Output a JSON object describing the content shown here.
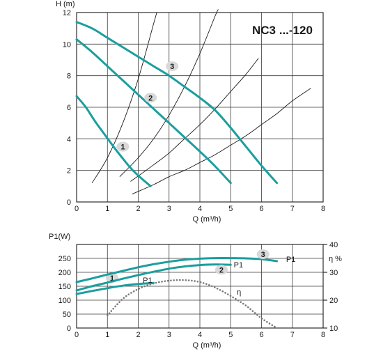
{
  "chart_data": [
    {
      "type": "line",
      "title": "NC3 ...-120",
      "ylabel": "H (m)",
      "xlabel": "Q (m³/h)",
      "xlim": [
        0,
        8
      ],
      "ylim": [
        0,
        12
      ],
      "x_ticks": [
        "0",
        "1",
        "2",
        "3",
        "4",
        "5",
        "6",
        "7",
        "8"
      ],
      "y_ticks": [
        "0",
        "2",
        "4",
        "6",
        "8",
        "10",
        "12"
      ],
      "grid": true,
      "pump_color": "#1b9e9e",
      "series": [
        {
          "label": "1",
          "label_at": [
            1.5,
            3.5
          ],
          "points": [
            [
              0,
              6.7
            ],
            [
              0.3,
              6.0
            ],
            [
              0.6,
              5.1
            ],
            [
              0.9,
              4.3
            ],
            [
              1.2,
              3.5
            ],
            [
              1.5,
              2.75
            ],
            [
              1.8,
              2.05
            ],
            [
              2.1,
              1.5
            ],
            [
              2.4,
              1.0
            ]
          ]
        },
        {
          "label": "2",
          "label_at": [
            2.4,
            6.6
          ],
          "points": [
            [
              0,
              10.3
            ],
            [
              0.5,
              9.5
            ],
            [
              1.0,
              8.6
            ],
            [
              1.5,
              7.7
            ],
            [
              2.0,
              6.8
            ],
            [
              2.5,
              5.9
            ],
            [
              3.0,
              5.0
            ],
            [
              3.5,
              4.1
            ],
            [
              4.0,
              3.2
            ],
            [
              4.5,
              2.25
            ],
            [
              5.0,
              1.2
            ]
          ]
        },
        {
          "label": "3",
          "label_at": [
            3.1,
            8.6
          ],
          "points": [
            [
              0,
              11.4
            ],
            [
              0.5,
              11.0
            ],
            [
              1.0,
              10.4
            ],
            [
              1.5,
              9.8
            ],
            [
              2.0,
              9.2
            ],
            [
              2.5,
              8.6
            ],
            [
              3.0,
              8.0
            ],
            [
              3.5,
              7.3
            ],
            [
              4.0,
              6.6
            ],
            [
              4.5,
              5.8
            ],
            [
              5.0,
              4.7
            ],
            [
              5.5,
              3.5
            ],
            [
              6.0,
              2.3
            ],
            [
              6.5,
              1.2
            ]
          ]
        }
      ],
      "system_curves": [
        [
          [
            0.5,
            1.2
          ],
          [
            1.0,
            2.8
          ],
          [
            1.5,
            5.0
          ],
          [
            2.0,
            7.8
          ],
          [
            2.5,
            11.3
          ],
          [
            2.6,
            12.0
          ]
        ],
        [
          [
            1.4,
            1.6
          ],
          [
            2.0,
            2.8
          ],
          [
            2.5,
            4.0
          ],
          [
            3.0,
            5.5
          ],
          [
            3.5,
            7.3
          ],
          [
            4.0,
            9.4
          ],
          [
            4.5,
            11.8
          ],
          [
            4.6,
            12.2
          ]
        ],
        [
          [
            1.75,
            1.3
          ],
          [
            2.5,
            2.35
          ],
          [
            3.0,
            3.1
          ],
          [
            3.5,
            4.0
          ],
          [
            4.0,
            4.9
          ],
          [
            4.5,
            5.9
          ],
          [
            5.0,
            7.0
          ],
          [
            5.5,
            8.1
          ],
          [
            5.9,
            9.1
          ]
        ],
        [
          [
            1.8,
            0.5
          ],
          [
            2.5,
            1.1
          ],
          [
            3.0,
            1.6
          ],
          [
            3.5,
            2.0
          ],
          [
            4.0,
            2.5
          ],
          [
            4.5,
            3.0
          ],
          [
            5.0,
            3.6
          ],
          [
            5.5,
            4.2
          ],
          [
            6.0,
            4.9
          ],
          [
            6.5,
            5.6
          ],
          [
            7.0,
            6.4
          ],
          [
            7.6,
            7.2
          ]
        ]
      ]
    },
    {
      "type": "line",
      "ylabel": "P1(W)",
      "y2label": "η %",
      "xlabel": "Q (m³/h)",
      "xlim": [
        0,
        8
      ],
      "ylim": [
        0,
        300
      ],
      "y2lim": [
        10,
        40
      ],
      "x_ticks": [
        "0",
        "1",
        "2",
        "3",
        "4",
        "5",
        "6",
        "7",
        "8"
      ],
      "y_ticks": [
        "0",
        "50",
        "100",
        "150",
        "200",
        "250"
      ],
      "y2_ticks": [
        "10",
        "20",
        "30",
        "40"
      ],
      "grid": true,
      "series": [
        {
          "label": "1",
          "side_label": "P1",
          "label_at": [
            1.15,
            180
          ],
          "side_label_at": [
            2.15,
            162
          ],
          "points": [
            [
              0,
              122
            ],
            [
              0.5,
              133
            ],
            [
              1.0,
              143
            ],
            [
              1.5,
              152
            ],
            [
              2.0,
              158
            ],
            [
              2.5,
              162
            ]
          ]
        },
        {
          "label": "2",
          "side_label": "P1",
          "label_at": [
            4.7,
            209
          ],
          "side_label_at": [
            5.1,
            218
          ],
          "points": [
            [
              0,
              135
            ],
            [
              0.5,
              150
            ],
            [
              1.0,
              163
            ],
            [
              1.5,
              177
            ],
            [
              2.0,
              190
            ],
            [
              2.5,
              202
            ],
            [
              3.0,
              213
            ],
            [
              3.5,
              221
            ],
            [
              4.0,
              226
            ],
            [
              4.5,
              228
            ],
            [
              5.0,
              227
            ]
          ]
        },
        {
          "label": "3",
          "side_label": "P1",
          "label_at": [
            6.05,
            265
          ],
          "side_label_at": [
            6.8,
            237
          ],
          "points": [
            [
              0,
              165
            ],
            [
              0.5,
              178
            ],
            [
              1.0,
              192
            ],
            [
              1.5,
              205
            ],
            [
              2.0,
              218
            ],
            [
              2.5,
              229
            ],
            [
              3.0,
              238
            ],
            [
              3.5,
              245
            ],
            [
              4.0,
              249
            ],
            [
              4.5,
              251
            ],
            [
              5.0,
              251
            ],
            [
              5.5,
              250
            ],
            [
              6.0,
              247
            ],
            [
              6.5,
              240
            ]
          ]
        }
      ],
      "efficiency": {
        "label": "η",
        "label_at": [
          5.2,
          120
        ],
        "points": [
          [
            1.0,
            14.5
          ],
          [
            1.5,
            20.5
          ],
          [
            2.0,
            24.0
          ],
          [
            2.5,
            26.0
          ],
          [
            3.0,
            27.0
          ],
          [
            3.5,
            27.2
          ],
          [
            4.0,
            26.5
          ],
          [
            4.5,
            24.5
          ],
          [
            5.0,
            21.5
          ],
          [
            5.5,
            18.0
          ],
          [
            6.0,
            13.5
          ],
          [
            6.5,
            10.0
          ]
        ]
      }
    }
  ]
}
